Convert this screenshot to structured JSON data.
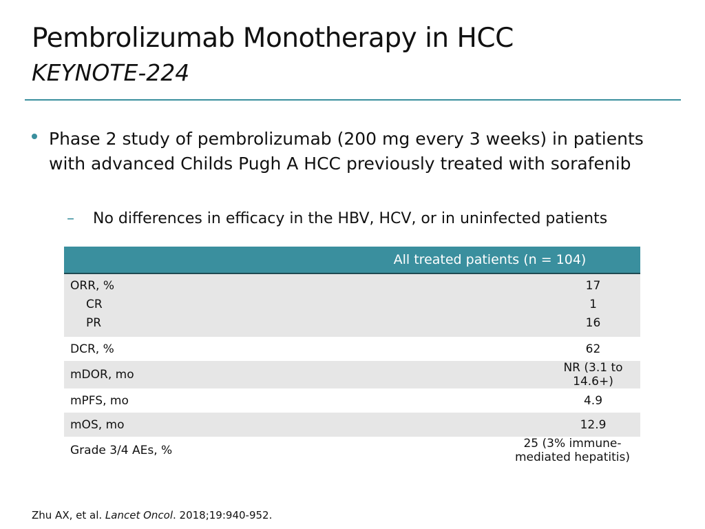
{
  "slide": {
    "title": "Pembrolizumab Monotherapy in HCC",
    "subtitle": "KEYNOTE-224",
    "accent_color": "#3a8f9e",
    "bullet": "Phase 2 study of pembrolizumab (200 mg every 3 weeks) in patients with advanced Childs Pugh A HCC previously treated with sorafenib",
    "sub_bullet": "No differences in efficacy in the HBV, HCV, or in uninfected patients",
    "sub_bullet_marker": "–"
  },
  "table": {
    "header_color": "#3a8f9e",
    "shade_color": "#e6e6e6",
    "column_header": "All treated patients (n = 104)",
    "orr": {
      "labels": [
        "ORR, %",
        "CR",
        "PR"
      ],
      "values": [
        "17",
        "1",
        "16"
      ]
    },
    "rows": [
      {
        "label": "DCR, %",
        "value": "62"
      },
      {
        "label": "mDOR, mo",
        "value": "NR (3.1 to 14.6+)"
      },
      {
        "label": "mPFS, mo",
        "value": "4.9"
      },
      {
        "label": "mOS, mo",
        "value": "12.9"
      },
      {
        "label": "Grade 3/4 AEs, %",
        "value": "25 (3% immune-mediated hepatitis)"
      }
    ]
  },
  "footer": {
    "authors": "Zhu AX, et al. ",
    "journal": "Lancet Oncol",
    "rest": ". 2018;19:940-952."
  }
}
